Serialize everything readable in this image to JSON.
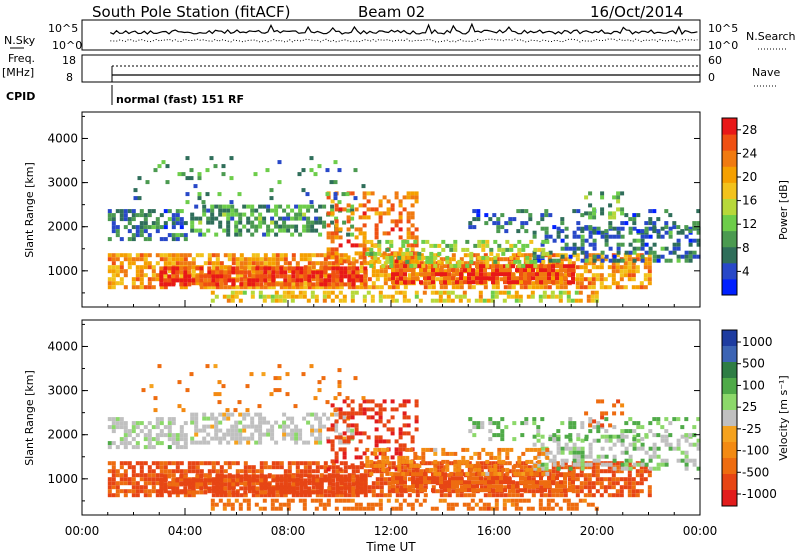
{
  "header": {
    "station": "South Pole Station (fitACF)",
    "beam": "Beam 02",
    "date": "16/Oct/2014"
  },
  "top_panels": {
    "nsky_label": "N.Sky",
    "nsky_ticks": [
      "10^5",
      "10^0"
    ],
    "nsearch_label": "N.Search",
    "nsearch_ticks": [
      "10^5",
      "10^0"
    ],
    "freq_label_1": "Freq.",
    "freq_label_2": "[MHz]",
    "freq_ticks": [
      "18",
      "8"
    ],
    "nave_label": "Nave",
    "nave_ticks": [
      "60",
      "0"
    ],
    "cpid_label": "CPID",
    "cpid_value": "normal (fast) 151 RF"
  },
  "colors": {
    "power": [
      "#0020ff",
      "#2848c8",
      "#2f6e5a",
      "#4b9a50",
      "#6dcd4a",
      "#b7d83a",
      "#f2c21c",
      "#f5a000",
      "#f07a10",
      "#ef5012",
      "#e81818"
    ],
    "velocity_pos": [
      "#1e3ca0",
      "#3c64b4",
      "#2e7d44",
      "#4faa48",
      "#8cd86a"
    ],
    "velocity_mid": "#c0c0c0",
    "velocity_neg": [
      "#f5a21e",
      "#f38a12",
      "#ee6c10",
      "#e74514",
      "#e21c1c"
    ]
  },
  "chart_data": [
    {
      "type": "heatmap",
      "ylabel": "Slant Range [km]",
      "ylim": [
        180,
        4600
      ],
      "yticks": [
        "1000",
        "2000",
        "3000",
        "4000"
      ],
      "xlabel": "",
      "xlim": [
        0,
        24
      ],
      "colorbar_label": "Power [dB]",
      "colorbar_ticks": [
        "4",
        "8",
        "12",
        "16",
        "20",
        "24",
        "28"
      ],
      "colorbar_range": [
        0,
        30
      ]
    },
    {
      "type": "heatmap",
      "ylabel": "Slant Range [km]",
      "ylim": [
        180,
        4600
      ],
      "yticks": [
        "1000",
        "2000",
        "3000",
        "4000"
      ],
      "xlabel": "Time UT",
      "xticks": [
        "00:00",
        "04:00",
        "08:00",
        "12:00",
        "16:00",
        "20:00",
        "00:00"
      ],
      "xlim": [
        0,
        24
      ],
      "colorbar_label": "Velocity [m s⁻¹]",
      "colorbar_ticks": [
        "1000",
        "500",
        "100",
        "25",
        "-25",
        "-100",
        "-500",
        "-1000"
      ]
    }
  ]
}
